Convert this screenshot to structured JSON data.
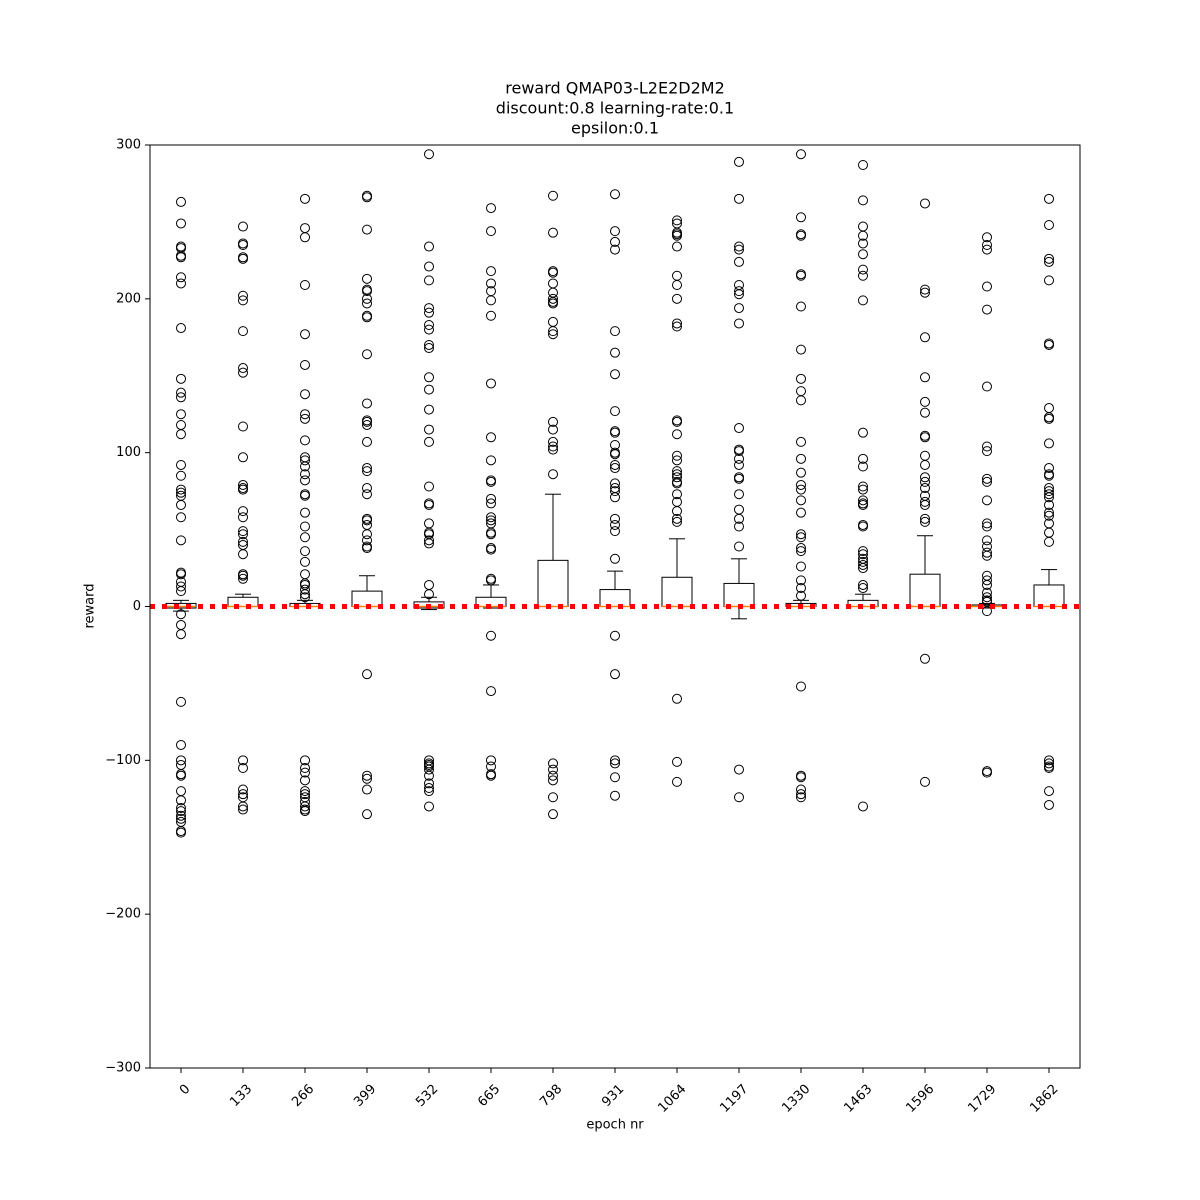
{
  "chart_data": {
    "type": "box",
    "title": [
      "reward QMAP03-L2E2D2M2",
      "discount:0.8 learning-rate:0.1",
      "epsilon:0.1"
    ],
    "x_label": "epoch nr",
    "y_label": "reward",
    "categories": [
      "0",
      "133",
      "266",
      "399",
      "532",
      "665",
      "798",
      "931",
      "1064",
      "1197",
      "1330",
      "1463",
      "1596",
      "1729",
      "1862"
    ],
    "ylim": [
      -300,
      300
    ],
    "yticks": [
      {
        "value": -300,
        "label": "−300"
      },
      {
        "value": -200,
        "label": "−200"
      },
      {
        "value": -100,
        "label": "−100"
      },
      0,
      100,
      200,
      300
    ],
    "box_color": "#000000",
    "median_color": "#ff7f0e",
    "hline": {
      "value": 0,
      "color": "#ff0000"
    },
    "boxes": [
      {
        "low": -3,
        "q1": -1,
        "median": 0,
        "q3": 2,
        "high": 4,
        "fliers": [
          263,
          249,
          234,
          233,
          228,
          227,
          214,
          210,
          181,
          148,
          139,
          136,
          125,
          118,
          112,
          92,
          85,
          76,
          74,
          72,
          66,
          58,
          43,
          22,
          21,
          16,
          13,
          10,
          -5,
          -12,
          -18,
          -62,
          -90,
          -100,
          -103,
          -109,
          -110,
          -120,
          -126,
          -131,
          -133,
          -136,
          -138,
          -140,
          -146,
          -147
        ]
      },
      {
        "low": 0,
        "q1": 0,
        "median": 0,
        "q3": 6,
        "high": 8,
        "fliers": [
          247,
          236,
          235,
          227,
          226,
          202,
          199,
          179,
          155,
          152,
          117,
          97,
          79,
          77,
          76,
          62,
          58,
          49,
          47,
          42,
          40,
          34,
          21,
          20,
          18,
          -100,
          -105,
          -119,
          -122,
          -124,
          -130,
          -132
        ]
      },
      {
        "low": 0,
        "q1": 0,
        "median": 0,
        "q3": 2,
        "high": 4,
        "fliers": [
          265,
          246,
          240,
          209,
          177,
          157,
          138,
          125,
          122,
          108,
          97,
          95,
          91,
          86,
          82,
          73,
          72,
          61,
          52,
          45,
          36,
          29,
          21,
          15,
          14,
          11,
          8,
          6,
          -100,
          -105,
          -108,
          -113,
          -120,
          -122,
          -124,
          -127,
          -130,
          -132,
          -133
        ]
      },
      {
        "low": 0,
        "q1": 0,
        "median": 0,
        "q3": 10,
        "high": 20,
        "fliers": [
          267,
          266,
          245,
          213,
          206,
          205,
          200,
          197,
          189,
          188,
          164,
          132,
          121,
          120,
          118,
          107,
          90,
          88,
          77,
          73,
          57,
          56,
          53,
          47,
          43,
          39,
          38,
          -44,
          -110,
          -112,
          -119,
          -135
        ]
      },
      {
        "low": -2,
        "q1": -1,
        "median": 0,
        "q3": 3,
        "high": 6,
        "fliers": [
          294,
          234,
          221,
          212,
          194,
          191,
          183,
          180,
          170,
          168,
          149,
          141,
          128,
          115,
          107,
          78,
          67,
          66,
          54,
          48,
          47,
          43,
          41,
          14,
          8,
          -100,
          -102,
          -103,
          -104,
          -106,
          -110,
          -115,
          -118,
          -120,
          -130
        ]
      },
      {
        "low": -1,
        "q1": 0,
        "median": 0,
        "q3": 6,
        "high": 14,
        "fliers": [
          259,
          244,
          218,
          210,
          205,
          199,
          189,
          145,
          110,
          95,
          82,
          81,
          70,
          67,
          58,
          56,
          54,
          48,
          47,
          38,
          37,
          18,
          17,
          -19,
          -55,
          -100,
          -104,
          -109,
          -110
        ]
      },
      {
        "low": 0,
        "q1": 0,
        "median": 0,
        "q3": 30,
        "high": 73,
        "fliers": [
          267,
          243,
          218,
          217,
          210,
          204,
          200,
          198,
          197,
          185,
          179,
          177,
          120,
          115,
          107,
          104,
          102,
          86,
          -102,
          -106,
          -110,
          -113,
          -124,
          -135
        ]
      },
      {
        "low": 0,
        "q1": 0,
        "median": 0,
        "q3": 11,
        "high": 23,
        "fliers": [
          268,
          244,
          237,
          232,
          179,
          165,
          151,
          127,
          114,
          113,
          105,
          100,
          99,
          92,
          90,
          80,
          77,
          75,
          71,
          57,
          53,
          49,
          31,
          -19,
          -44,
          -100,
          -102,
          -111,
          -123
        ]
      },
      {
        "low": 0,
        "q1": 0,
        "median": 0,
        "q3": 19,
        "high": 44,
        "fliers": [
          251,
          249,
          243,
          242,
          241,
          234,
          215,
          209,
          200,
          184,
          182,
          121,
          120,
          112,
          98,
          95,
          88,
          86,
          84,
          81,
          80,
          73,
          68,
          62,
          57,
          55,
          -60,
          -101,
          -114
        ]
      },
      {
        "low": -8,
        "q1": 0,
        "median": 0,
        "q3": 15,
        "high": 31,
        "fliers": [
          289,
          265,
          234,
          232,
          224,
          209,
          205,
          203,
          194,
          184,
          116,
          102,
          101,
          96,
          92,
          84,
          83,
          73,
          63,
          57,
          52,
          39,
          -106,
          -124
        ]
      },
      {
        "low": 0,
        "q1": 0,
        "median": 0,
        "q3": 2,
        "high": 4,
        "fliers": [
          294,
          253,
          242,
          241,
          216,
          215,
          195,
          167,
          148,
          140,
          134,
          107,
          96,
          87,
          79,
          76,
          69,
          61,
          47,
          45,
          38,
          36,
          26,
          17,
          12,
          7,
          -52,
          -110,
          -111,
          -119,
          -122,
          -124
        ]
      },
      {
        "low": 0,
        "q1": 0,
        "median": 0,
        "q3": 4,
        "high": 8,
        "fliers": [
          287,
          264,
          247,
          241,
          236,
          229,
          219,
          215,
          199,
          113,
          96,
          91,
          78,
          76,
          69,
          67,
          66,
          53,
          52,
          36,
          34,
          31,
          29,
          27,
          25,
          14,
          12,
          -130
        ]
      },
      {
        "low": 0,
        "q1": 0,
        "median": 0,
        "q3": 21,
        "high": 46,
        "fliers": [
          262,
          206,
          204,
          175,
          149,
          133,
          126,
          111,
          110,
          98,
          92,
          84,
          81,
          77,
          72,
          68,
          66,
          57,
          55,
          -34,
          -114
        ]
      },
      {
        "low": -1,
        "q1": 0,
        "median": 0,
        "q3": 1,
        "high": 2,
        "fliers": [
          240,
          235,
          232,
          208,
          193,
          143,
          104,
          101,
          83,
          81,
          69,
          54,
          52,
          43,
          39,
          35,
          33,
          20,
          17,
          14,
          9,
          6,
          4,
          3,
          -3,
          -107,
          -108
        ]
      },
      {
        "low": 0,
        "q1": 0,
        "median": 0,
        "q3": 14,
        "high": 24,
        "fliers": [
          265,
          248,
          226,
          224,
          212,
          171,
          170,
          129,
          123,
          122,
          106,
          90,
          86,
          85,
          77,
          75,
          73,
          71,
          66,
          61,
          59,
          54,
          48,
          42,
          -100,
          -102,
          -104,
          -105,
          -120,
          -129
        ]
      }
    ]
  }
}
